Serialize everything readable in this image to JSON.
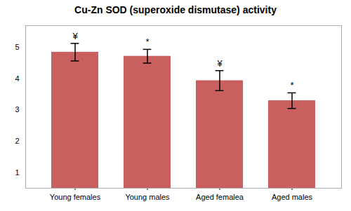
{
  "chart_data": {
    "type": "bar",
    "title": "Cu-Zn SOD (superoxide dismutase) activity",
    "categories": [
      "Young females",
      "Young males",
      "Aged femalea",
      "Aged males"
    ],
    "values": [
      4.85,
      4.72,
      3.94,
      3.3
    ],
    "errors": [
      0.28,
      0.22,
      0.32,
      0.25
    ],
    "annotations": [
      "¥",
      "*",
      "¥",
      "*"
    ],
    "color": "#c95f5f",
    "ylim": [
      0.5,
      5.7
    ],
    "yticks": [
      1,
      2,
      3,
      4,
      5
    ],
    "grid": false
  }
}
